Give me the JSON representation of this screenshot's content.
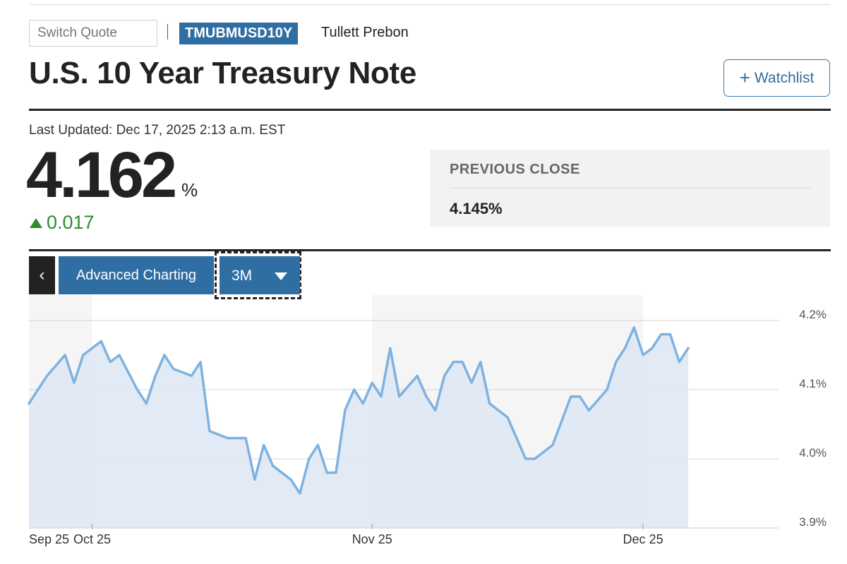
{
  "search": {
    "placeholder": "Switch Quote"
  },
  "quote": {
    "ticker": "TMUBMUSD10Y",
    "source": "Tullett Prebon",
    "title": "U.S. 10 Year Treasury Note",
    "watchlist_plus": "+",
    "watchlist_label": "Watchlist",
    "last_updated": "Last Updated: Dec 17, 2025 2:13 a.m. EST",
    "price": "4.162",
    "price_unit": "%",
    "change": "0.017",
    "change_direction": "up",
    "previous_close_label": "PREVIOUS CLOSE",
    "previous_close_value": "4.145%"
  },
  "chart_controls": {
    "back_icon": "chevron-left-icon",
    "back_glyph": "‹",
    "advanced_label": "Advanced Charting",
    "range_selected": "3M",
    "range_icon": "caret-down-icon"
  },
  "colors": {
    "brand_blue": "#2f6ea3",
    "line": "#7fb2e0",
    "fill": "#dde8f3",
    "up_green": "#2e8b2e"
  },
  "chart_data": {
    "type": "area",
    "title": "",
    "xlabel": "",
    "ylabel": "",
    "ylim": [
      3.9,
      4.2
    ],
    "yticks": [
      {
        "value": 4.2,
        "label": "4.2%"
      },
      {
        "value": 4.1,
        "label": "4.1%"
      },
      {
        "value": 4.0,
        "label": "4.0%"
      },
      {
        "value": 3.9,
        "label": "3.9%"
      }
    ],
    "xlim": [
      "2025-09-24",
      "2025-12-16"
    ],
    "xticks": [
      {
        "date": "2025-09-25",
        "label": "Sep 25"
      },
      {
        "date": "2025-10-01",
        "label": "Oct 25"
      },
      {
        "date": "2025-11-01",
        "label": "Nov 25"
      },
      {
        "date": "2025-12-01",
        "label": "Dec 25"
      }
    ],
    "month_bands": [
      "2025-10-01",
      "2025-11-01",
      "2025-12-01"
    ],
    "grid": true,
    "legend": "none",
    "series": [
      {
        "points": [
          [
            "2025-09-24",
            4.08
          ],
          [
            "2025-09-25",
            4.1
          ],
          [
            "2025-09-26",
            4.12
          ],
          [
            "2025-09-28",
            4.15
          ],
          [
            "2025-09-29",
            4.11
          ],
          [
            "2025-09-30",
            4.15
          ],
          [
            "2025-10-01",
            4.16
          ],
          [
            "2025-10-02",
            4.17
          ],
          [
            "2025-10-03",
            4.14
          ],
          [
            "2025-10-04",
            4.15
          ],
          [
            "2025-10-06",
            4.1
          ],
          [
            "2025-10-07",
            4.08
          ],
          [
            "2025-10-08",
            4.12
          ],
          [
            "2025-10-09",
            4.15
          ],
          [
            "2025-10-10",
            4.13
          ],
          [
            "2025-10-12",
            4.12
          ],
          [
            "2025-10-13",
            4.14
          ],
          [
            "2025-10-14",
            4.04
          ],
          [
            "2025-10-16",
            4.03
          ],
          [
            "2025-10-17",
            4.03
          ],
          [
            "2025-10-18",
            4.03
          ],
          [
            "2025-10-19",
            3.97
          ],
          [
            "2025-10-20",
            4.02
          ],
          [
            "2025-10-21",
            3.99
          ],
          [
            "2025-10-23",
            3.97
          ],
          [
            "2025-10-24",
            3.95
          ],
          [
            "2025-10-25",
            4.0
          ],
          [
            "2025-10-26",
            4.02
          ],
          [
            "2025-10-27",
            3.98
          ],
          [
            "2025-10-28",
            3.98
          ],
          [
            "2025-10-29",
            4.07
          ],
          [
            "2025-10-30",
            4.1
          ],
          [
            "2025-10-31",
            4.08
          ],
          [
            "2025-11-01",
            4.11
          ],
          [
            "2025-11-02",
            4.09
          ],
          [
            "2025-11-03",
            4.16
          ],
          [
            "2025-11-04",
            4.09
          ],
          [
            "2025-11-06",
            4.12
          ],
          [
            "2025-11-07",
            4.09
          ],
          [
            "2025-11-08",
            4.07
          ],
          [
            "2025-11-09",
            4.12
          ],
          [
            "2025-11-10",
            4.14
          ],
          [
            "2025-11-11",
            4.14
          ],
          [
            "2025-11-12",
            4.11
          ],
          [
            "2025-11-13",
            4.14
          ],
          [
            "2025-11-14",
            4.08
          ],
          [
            "2025-11-16",
            4.06
          ],
          [
            "2025-11-18",
            4.0
          ],
          [
            "2025-11-19",
            4.0
          ],
          [
            "2025-11-21",
            4.02
          ],
          [
            "2025-11-23",
            4.09
          ],
          [
            "2025-11-24",
            4.09
          ],
          [
            "2025-11-25",
            4.07
          ],
          [
            "2025-11-27",
            4.1
          ],
          [
            "2025-11-28",
            4.14
          ],
          [
            "2025-11-29",
            4.16
          ],
          [
            "2025-11-30",
            4.19
          ],
          [
            "2025-12-01",
            4.15
          ],
          [
            "2025-12-02",
            4.16
          ],
          [
            "2025-12-03",
            4.18
          ],
          [
            "2025-12-04",
            4.18
          ],
          [
            "2025-12-05",
            4.14
          ],
          [
            "2025-12-06",
            4.16
          ]
        ]
      }
    ]
  }
}
